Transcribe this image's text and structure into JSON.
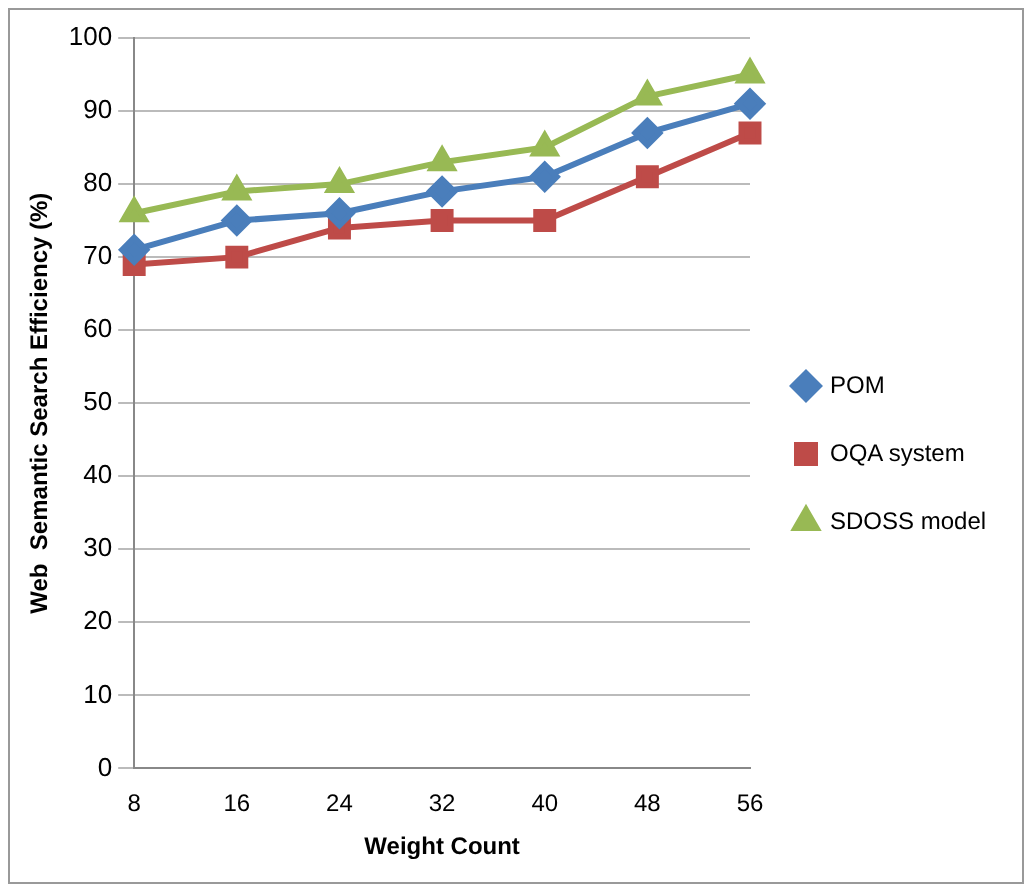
{
  "chart_data": {
    "type": "line",
    "xlabel": "Weight Count",
    "ylabel": "Web  Semantic Search Efficiency (%)",
    "categories": [
      "8",
      "16",
      "24",
      "32",
      "40",
      "48",
      "56"
    ],
    "series": [
      {
        "name": "POM",
        "color": "#4a7ebb",
        "marker": "diamond",
        "values": [
          71,
          75,
          76,
          79,
          81,
          87,
          91
        ]
      },
      {
        "name": "OQA system",
        "color": "#be4b48",
        "marker": "square",
        "values": [
          69,
          70,
          74,
          75,
          75,
          81,
          87
        ]
      },
      {
        "name": "SDOSS model",
        "color": "#98b954",
        "marker": "triangle",
        "values": [
          76,
          79,
          80,
          83,
          85,
          92,
          95
        ]
      }
    ],
    "ylim": [
      0,
      100
    ],
    "yticks": [
      0,
      10,
      20,
      30,
      40,
      50,
      60,
      70,
      80,
      90,
      100
    ],
    "grid": "y",
    "legend": "right"
  }
}
